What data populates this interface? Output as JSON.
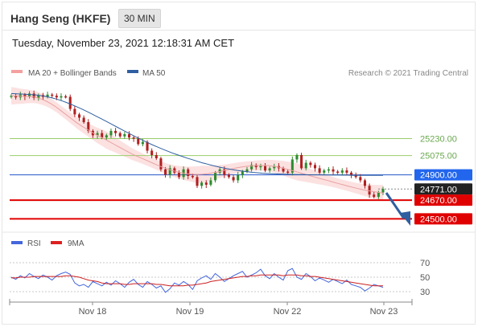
{
  "header": {
    "title": "Hang Seng (HKFE)",
    "interval": "30 MIN"
  },
  "datetime": "Tuesday, November 23, 2021 12:18:31 AM CET",
  "legend": {
    "ma20_label": "MA 20 + Bollinger Bands",
    "ma50_label": "MA 50",
    "credit": "Research © 2021 Trading Central",
    "rsi_label": "RSI",
    "ma9_label": "9MA"
  },
  "colors": {
    "bollinger": "#f08080",
    "ma50": "#2f5fa0",
    "support_resistance_green": "#9acd6a",
    "pivot_blue": "#2255cc",
    "support_red": "#e00000",
    "bull": "#2e8b2e",
    "bear": "#b02020",
    "rsi": "#4466dd",
    "rsi_ma": "#cc2020"
  },
  "chart_data": [
    {
      "type": "candlestick",
      "title": "Hang Seng (HKFE)",
      "interval": "30 MIN",
      "ylim": [
        24400,
        25760
      ],
      "x_ticks": [
        "Nov 18",
        "Nov 19",
        "Nov 22",
        "Nov 23"
      ],
      "levels": [
        {
          "label": "25230.00",
          "value": 25230,
          "kind": "resistance"
        },
        {
          "label": "25075.00",
          "value": 25075,
          "kind": "resistance"
        },
        {
          "label": "24900.00",
          "value": 24900,
          "kind": "pivot"
        },
        {
          "label": "24771.00",
          "value": 24771,
          "kind": "last"
        },
        {
          "label": "24670.00",
          "value": 24670,
          "kind": "support"
        },
        {
          "label": "24500.00",
          "value": 24500,
          "kind": "support"
        }
      ],
      "close_series": [
        25620,
        25605,
        25630,
        25610,
        25640,
        25600,
        25625,
        25610,
        25630,
        25620,
        25605,
        25615,
        25610,
        25500,
        25450,
        25420,
        25380,
        25300,
        25260,
        25280,
        25240,
        25260,
        25300,
        25280,
        25250,
        25270,
        25240,
        25230,
        25180,
        25200,
        25120,
        25080,
        25050,
        24950,
        24900,
        24960,
        24920,
        24880,
        24950,
        24890,
        24880,
        24800,
        24830,
        24810,
        24850,
        24920,
        24950,
        24900,
        24880,
        24850,
        24900,
        24930,
        24950,
        24990,
        24970,
        24980,
        24940,
        24960,
        24980,
        24960,
        24930,
        24920,
        25040,
        25080,
        24960,
        25010,
        24990,
        24960,
        24920,
        24940,
        24950,
        24930,
        24920,
        24940,
        24920,
        24900,
        24880,
        24850,
        24800,
        24720,
        24700,
        24740,
        24771
      ],
      "series": [
        {
          "name": "MA 20 + Bollinger Bands",
          "values": [
            25620,
            25618,
            25615,
            25614,
            25612,
            25605,
            25590,
            25570,
            25545,
            25515,
            25480,
            25445,
            25410,
            25375,
            25345,
            25318,
            25290,
            25262,
            25240,
            25215,
            25190,
            25165,
            25140,
            25115,
            25090,
            25070,
            25050,
            25030,
            25010,
            24990,
            24972,
            24955,
            24940,
            24928,
            24918,
            24910,
            24905,
            24902,
            24905,
            24910,
            24918,
            24926,
            24935,
            24945,
            24955,
            24965,
            24972,
            24978,
            24982,
            24985,
            24986,
            24985,
            24980,
            24972,
            24962,
            24950,
            24938,
            24925,
            24912,
            24898,
            24885,
            24872,
            24860,
            24848,
            24835,
            24822,
            24810,
            24798,
            24786,
            24775,
            24765,
            24756,
            24748,
            24741,
            24735
          ]
        },
        {
          "name": "MA 50",
          "values": [
            25640,
            25638,
            25636,
            25633,
            25630,
            25626,
            25620,
            25612,
            25602,
            25590,
            25575,
            25558,
            25540,
            25520,
            25500,
            25478,
            25455,
            25432,
            25408,
            25385,
            25360,
            25336,
            25312,
            25288,
            25264,
            25240,
            25218,
            25196,
            25175,
            25155,
            25136,
            25118,
            25100,
            25084,
            25068,
            25052,
            25038,
            25024,
            25010,
            24998,
            24986,
            24975,
            24965,
            24956,
            24948,
            24940,
            24934,
            24928,
            24923,
            24919,
            24915,
            24912,
            24910,
            24908,
            24906,
            24905,
            24904,
            24903,
            24902,
            24901,
            24900,
            24900,
            24899,
            24899,
            24898,
            24898,
            24897,
            24897,
            24896,
            24896,
            24896,
            24895,
            24895,
            24895,
            24895
          ]
        }
      ]
    },
    {
      "type": "line",
      "title": "RSI",
      "ylim": [
        20,
        80
      ],
      "y_ticks": [
        70,
        50,
        30
      ],
      "x_ticks": [
        "Nov 18",
        "Nov 19",
        "Nov 22",
        "Nov 23"
      ],
      "series": [
        {
          "name": "RSI",
          "values": [
            50,
            47,
            52,
            49,
            55,
            51,
            48,
            53,
            50,
            46,
            52,
            55,
            57,
            54,
            42,
            38,
            40,
            36,
            44,
            41,
            38,
            43,
            39,
            45,
            41,
            36,
            43,
            47,
            40,
            36,
            44,
            40,
            35,
            38,
            29,
            34,
            42,
            39,
            44,
            40,
            33,
            45,
            49,
            52,
            47,
            55,
            50,
            44,
            48,
            52,
            55,
            58,
            50,
            53,
            56,
            61,
            52,
            48,
            55,
            50,
            46,
            59,
            62,
            50,
            47,
            55,
            51,
            45,
            49,
            46,
            43,
            47,
            44,
            41,
            46,
            40,
            38,
            36,
            31,
            35,
            40,
            38,
            36
          ]
        },
        {
          "name": "9MA",
          "values": [
            49,
            49,
            50,
            50,
            50,
            51,
            51,
            51,
            51,
            51,
            51,
            51,
            52,
            52,
            51,
            50,
            48,
            46,
            45,
            44,
            42,
            41,
            41,
            41,
            41,
            40,
            40,
            41,
            41,
            41,
            41,
            41,
            40,
            40,
            39,
            38,
            38,
            38,
            38,
            39,
            39,
            40,
            41,
            42,
            44,
            45,
            46,
            47,
            48,
            49,
            50,
            51,
            51,
            52,
            52,
            53,
            53,
            53,
            53,
            53,
            52,
            53,
            53,
            53,
            52,
            52,
            51,
            51,
            50,
            49,
            48,
            47,
            46,
            45,
            44,
            43,
            42,
            41,
            40,
            39,
            38,
            38,
            38
          ]
        }
      ]
    }
  ]
}
